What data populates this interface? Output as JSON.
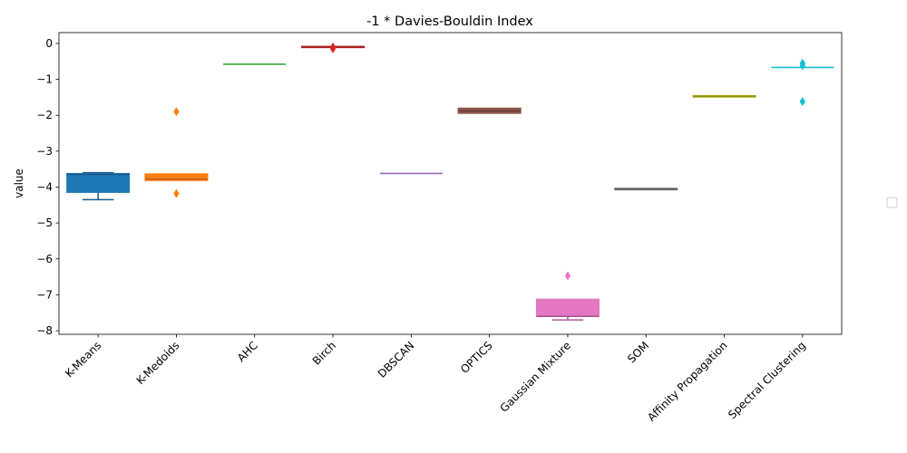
{
  "chart_data": {
    "type": "box",
    "title": "-1 * Davies-Bouldin Index",
    "xlabel": "",
    "ylabel": "value",
    "ylim": [
      -8.1,
      0.3
    ],
    "yticks": [
      0,
      -1,
      -2,
      -3,
      -4,
      -5,
      -6,
      -7,
      -8
    ],
    "ytick_labels": [
      "0",
      "−1",
      "−2",
      "−3",
      "−4",
      "−5",
      "−6",
      "−7",
      "−8"
    ],
    "grid": false,
    "legend": "right (empty)",
    "categories": [
      "K-Means",
      "K-Medoids",
      "AHC",
      "Birch",
      "DBSCAN",
      "OPTICS",
      "Gaussian Mixture",
      "SOM",
      "Affinity Propagation",
      "Spectral Clustering"
    ],
    "boxes": [
      {
        "name": "K-Means",
        "color": "#1f77b4",
        "q1": -4.15,
        "median": -3.65,
        "q3": -3.62,
        "whisker_low": -4.35,
        "whisker_high": -3.6,
        "outliers": []
      },
      {
        "name": "K-Medoids",
        "color": "#ff7f0e",
        "q1": -3.82,
        "median": -3.78,
        "q3": -3.63,
        "whisker_low": -3.82,
        "whisker_high": -3.63,
        "outliers": [
          -1.9,
          -4.18
        ]
      },
      {
        "name": "AHC",
        "color": "#2ca02c",
        "q1": -0.58,
        "median": -0.58,
        "q3": -0.58,
        "whisker_low": -0.58,
        "whisker_high": -0.58,
        "outliers": []
      },
      {
        "name": "Birch",
        "color": "#d62728",
        "q1": -0.12,
        "median": -0.1,
        "q3": -0.08,
        "whisker_low": -0.12,
        "whisker_high": -0.08,
        "outliers": [
          -0.1,
          -0.15
        ]
      },
      {
        "name": "DBSCAN",
        "color": "#9467bd",
        "q1": -3.62,
        "median": -3.62,
        "q3": -3.62,
        "whisker_low": -3.62,
        "whisker_high": -3.62,
        "outliers": []
      },
      {
        "name": "OPTICS",
        "color": "#8c564b",
        "q1": -1.95,
        "median": -1.88,
        "q3": -1.8,
        "whisker_low": -1.95,
        "whisker_high": -1.8,
        "outliers": []
      },
      {
        "name": "Gaussian Mixture",
        "color": "#e377c2",
        "q1": -7.6,
        "median": -7.6,
        "q3": -7.12,
        "whisker_low": -7.7,
        "whisker_high": -7.12,
        "outliers": [
          -6.47
        ]
      },
      {
        "name": "SOM",
        "color": "#7f7f7f",
        "q1": -4.08,
        "median": -4.06,
        "q3": -4.03,
        "whisker_low": -4.08,
        "whisker_high": -4.03,
        "outliers": []
      },
      {
        "name": "Affinity Propagation",
        "color": "#bcbd22",
        "q1": -1.5,
        "median": -1.47,
        "q3": -1.45,
        "whisker_low": -1.5,
        "whisker_high": -1.45,
        "outliers": []
      },
      {
        "name": "Spectral Clustering",
        "color": "#17becf",
        "q1": -0.67,
        "median": -0.67,
        "q3": -0.67,
        "whisker_low": -0.67,
        "whisker_high": -0.67,
        "outliers": [
          -0.55,
          -0.62,
          -1.62
        ]
      }
    ]
  }
}
